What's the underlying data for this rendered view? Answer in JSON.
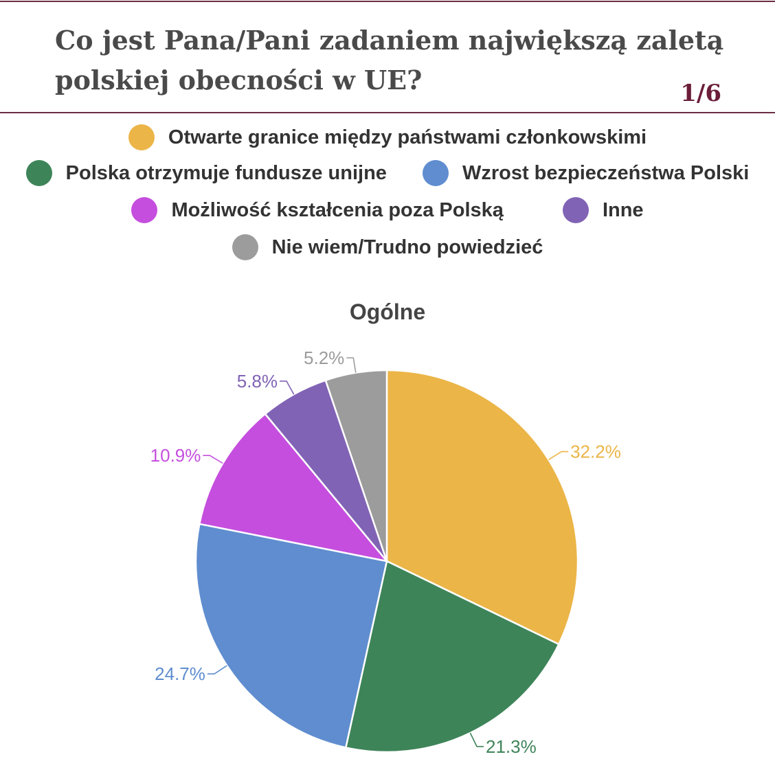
{
  "header": {
    "title": "Co jest Pana/Pani zadaniem największą zaletą polskiej obecności w UE?",
    "page_indicator": "1/6"
  },
  "colors": {
    "rule": "#6b2c45",
    "page_indicator": "#6b1d3a"
  },
  "chart_data": {
    "type": "pie",
    "title": "Ogólne",
    "legend_position": "top",
    "slices": [
      {
        "label": "Otwarte granice między państwami członkowskimi",
        "value": 32.2,
        "display": "32.2%",
        "color": "#EBB547"
      },
      {
        "label": "Polska otrzymuje fundusze unijne",
        "value": 21.3,
        "display": "21.3%",
        "color": "#3E8459"
      },
      {
        "label": "Wzrost bezpieczeństwa Polski",
        "value": 24.7,
        "display": "24.7%",
        "color": "#5F8DCF"
      },
      {
        "label": "Możliwość kształcenia poza Polską",
        "value": 10.9,
        "display": "10.9%",
        "color": "#C54EDE"
      },
      {
        "label": "Inne",
        "value": 5.8,
        "display": "5.8%",
        "color": "#8163B5"
      },
      {
        "label": "Nie wiem/Trudno powiedzieć",
        "value": 5.2,
        "display": "5.2%",
        "color": "#9C9C9C"
      }
    ]
  }
}
